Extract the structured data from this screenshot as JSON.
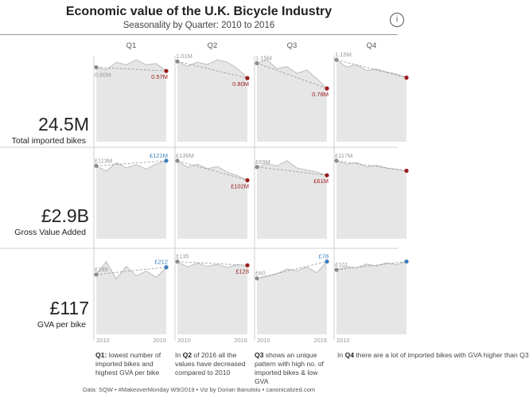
{
  "title": "Economic value of the U.K. Bicycle Industry",
  "subtitle": "Seasonality by Quarter: 2010 to 2016",
  "info_icon": "info-icon",
  "columns": [
    "Q1",
    "Q2",
    "Q3",
    "Q4"
  ],
  "metrics": [
    {
      "big": "24.5M",
      "label": "Total imported bikes"
    },
    {
      "big": "£2.9B",
      "label": "Gross Value Added"
    },
    {
      "big": "£117",
      "label": "GVA per bike"
    }
  ],
  "notes": [
    {
      "bold": "Q1:",
      "text": " lowest number of imported bikes and highest GVA per bike"
    },
    {
      "pre": "In ",
      "bold": "Q2",
      "text": " of 2016 all the values have decreased compared to 2010"
    },
    {
      "bold": "Q3",
      "text": " shows an unique pattern with high no. of imported bikes & low GVA"
    },
    {
      "pre": "In ",
      "bold": "Q4",
      "text": " there are a lot of imported bikes with GVA higher than Q3"
    }
  ],
  "footer": "Data: SQW • #MakeoverMonday W9/2019 • Viz by Dorian Banutoiu • canonicalized.com",
  "colors": {
    "area": "#e6e6e6",
    "line": "#bdbdbd",
    "start": "#8c8c8c",
    "down": "#9b1b1b",
    "up": "#3a7dbd"
  },
  "chart_data": {
    "type": "area",
    "x_start_label": "2010",
    "x_end_label": "2016",
    "rows": [
      "Total imported bikes",
      "Gross Value Added",
      "GVA per bike"
    ],
    "panels": [
      {
        "row": 0,
        "quarter": "Q1",
        "values": [
          0.6,
          0.58,
          0.64,
          0.62,
          0.66,
          0.62,
          0.63,
          0.57
        ],
        "start_label": "0.60M",
        "end_label": "0.57M",
        "trend": "down"
      },
      {
        "row": 0,
        "quarter": "Q2",
        "values": [
          1.01,
          0.95,
          1.0,
          0.97,
          1.03,
          1.0,
          0.92,
          0.8
        ],
        "start_label": "1.01M",
        "end_label": "0.80M",
        "trend": "down"
      },
      {
        "row": 0,
        "quarter": "Q3",
        "values": [
          1.15,
          1.2,
          1.07,
          1.1,
          1.0,
          1.05,
          0.92,
          0.78
        ],
        "start_label": "1.15M",
        "end_label": "0.78M",
        "trend": "down"
      },
      {
        "row": 0,
        "quarter": "Q4",
        "values": [
          1.15,
          1.05,
          1.08,
          1.0,
          1.02,
          0.98,
          0.95,
          0.9
        ],
        "start_label": "1.15M",
        "end_label": "",
        "trend": "down"
      },
      {
        "row": 1,
        "quarter": "Q1",
        "values": [
          113,
          105,
          118,
          110,
          115,
          108,
          116,
          121
        ],
        "start_label": "£113M",
        "end_label": "£121M",
        "trend": "up"
      },
      {
        "row": 1,
        "quarter": "Q2",
        "values": [
          136,
          125,
          130,
          122,
          126,
          116,
          110,
          102
        ],
        "start_label": "£136M",
        "end_label": "£102M",
        "trend": "down"
      },
      {
        "row": 1,
        "quarter": "Q3",
        "values": [
          69,
          72,
          70,
          75,
          68,
          66,
          64,
          61
        ],
        "start_label": "£69M",
        "end_label": "£61M",
        "trend": "down"
      },
      {
        "row": 1,
        "quarter": "Q4",
        "values": [
          117,
          112,
          114,
          108,
          110,
          106,
          104,
          102
        ],
        "start_label": "£117M",
        "end_label": "",
        "trend": "down"
      },
      {
        "row": 2,
        "quarter": "Q1",
        "values": [
          189,
          230,
          175,
          215,
          185,
          200,
          180,
          212
        ],
        "start_label": "£189",
        "end_label": "£212",
        "trend": "up"
      },
      {
        "row": 2,
        "quarter": "Q2",
        "values": [
          135,
          125,
          132,
          126,
          130,
          124,
          129,
          128
        ],
        "start_label": "£135",
        "end_label": "£128",
        "trend": "down"
      },
      {
        "row": 2,
        "quarter": "Q3",
        "values": [
          60,
          62,
          65,
          70,
          68,
          72,
          66,
          78
        ],
        "start_label": "£60",
        "end_label": "£78",
        "trend": "up"
      },
      {
        "row": 2,
        "quarter": "Q4",
        "values": [
          101,
          106,
          104,
          110,
          107,
          112,
          109,
          114
        ],
        "start_label": "£101",
        "end_label": "",
        "trend": "up"
      }
    ],
    "grid": false
  }
}
